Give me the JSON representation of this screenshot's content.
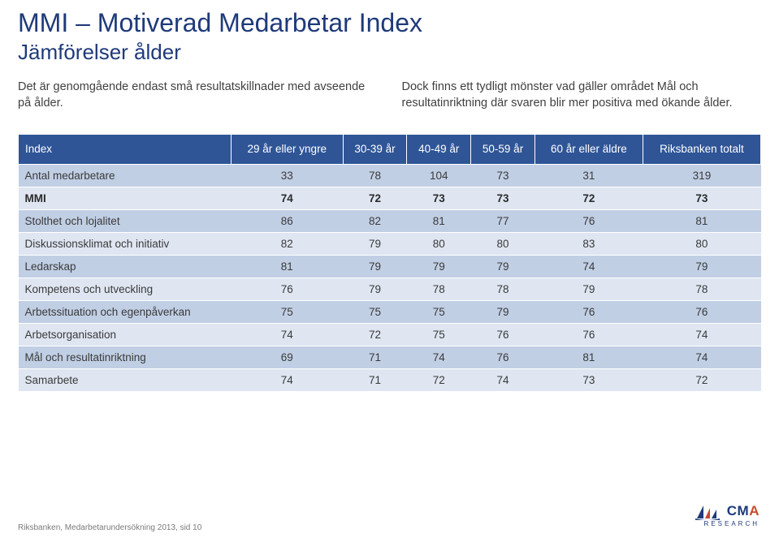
{
  "page": {
    "title": "MMI – Motiverad Medarbetar Index",
    "subtitle": "Jämförelser ålder",
    "intro_left": "Det är genomgående endast små resultatskillnader med avseende på ålder.",
    "intro_right": "Dock finns ett tydligt mönster vad gäller området Mål och resultatinriktning där svaren blir mer positiva med ökande ålder."
  },
  "table": {
    "header_row_label": "Index",
    "columns": [
      "29 år eller yngre",
      "30-39 år",
      "40-49 år",
      "50-59 år",
      "60 år eller äldre",
      "Riksbanken totalt"
    ],
    "rows": [
      {
        "label": "Antal medarbetare",
        "values": [
          33,
          78,
          104,
          73,
          31,
          319
        ],
        "style": "odd"
      },
      {
        "label": "MMI",
        "values": [
          74,
          72,
          73,
          73,
          72,
          73
        ],
        "style": "mmi"
      },
      {
        "label": "Stolthet och lojalitet",
        "values": [
          86,
          82,
          81,
          77,
          76,
          81
        ],
        "style": "odd"
      },
      {
        "label": "Diskussionsklimat och initiativ",
        "values": [
          82,
          79,
          80,
          80,
          83,
          80
        ],
        "style": "even"
      },
      {
        "label": "Ledarskap",
        "values": [
          81,
          79,
          79,
          79,
          74,
          79
        ],
        "style": "odd"
      },
      {
        "label": "Kompetens och utveckling",
        "values": [
          76,
          79,
          78,
          78,
          79,
          78
        ],
        "style": "even"
      },
      {
        "label": "Arbetssituation och egenpåverkan",
        "values": [
          75,
          75,
          75,
          79,
          76,
          76
        ],
        "style": "odd"
      },
      {
        "label": "Arbetsorganisation",
        "values": [
          74,
          72,
          75,
          76,
          76,
          74
        ],
        "style": "even"
      },
      {
        "label": "Mål och resultatinriktning",
        "values": [
          69,
          71,
          74,
          76,
          81,
          74
        ],
        "style": "odd"
      },
      {
        "label": "Samarbete",
        "values": [
          74,
          71,
          72,
          74,
          73,
          72
        ],
        "style": "even"
      }
    ]
  },
  "footer": "Riksbanken, Medarbetarundersökning 2013, sid 10",
  "logo": {
    "brand1": "CM",
    "brand2": "A",
    "sub": "RESEARCH"
  },
  "colors": {
    "heading": "#1f3a7a",
    "table_header_bg": "#2f5597",
    "row_even_bg": "#dfe6f2",
    "row_odd_bg": "#c1cfe5",
    "text": "#3a3a3a",
    "footer": "#7a7a7a",
    "logo_accent": "#c94a2e"
  }
}
